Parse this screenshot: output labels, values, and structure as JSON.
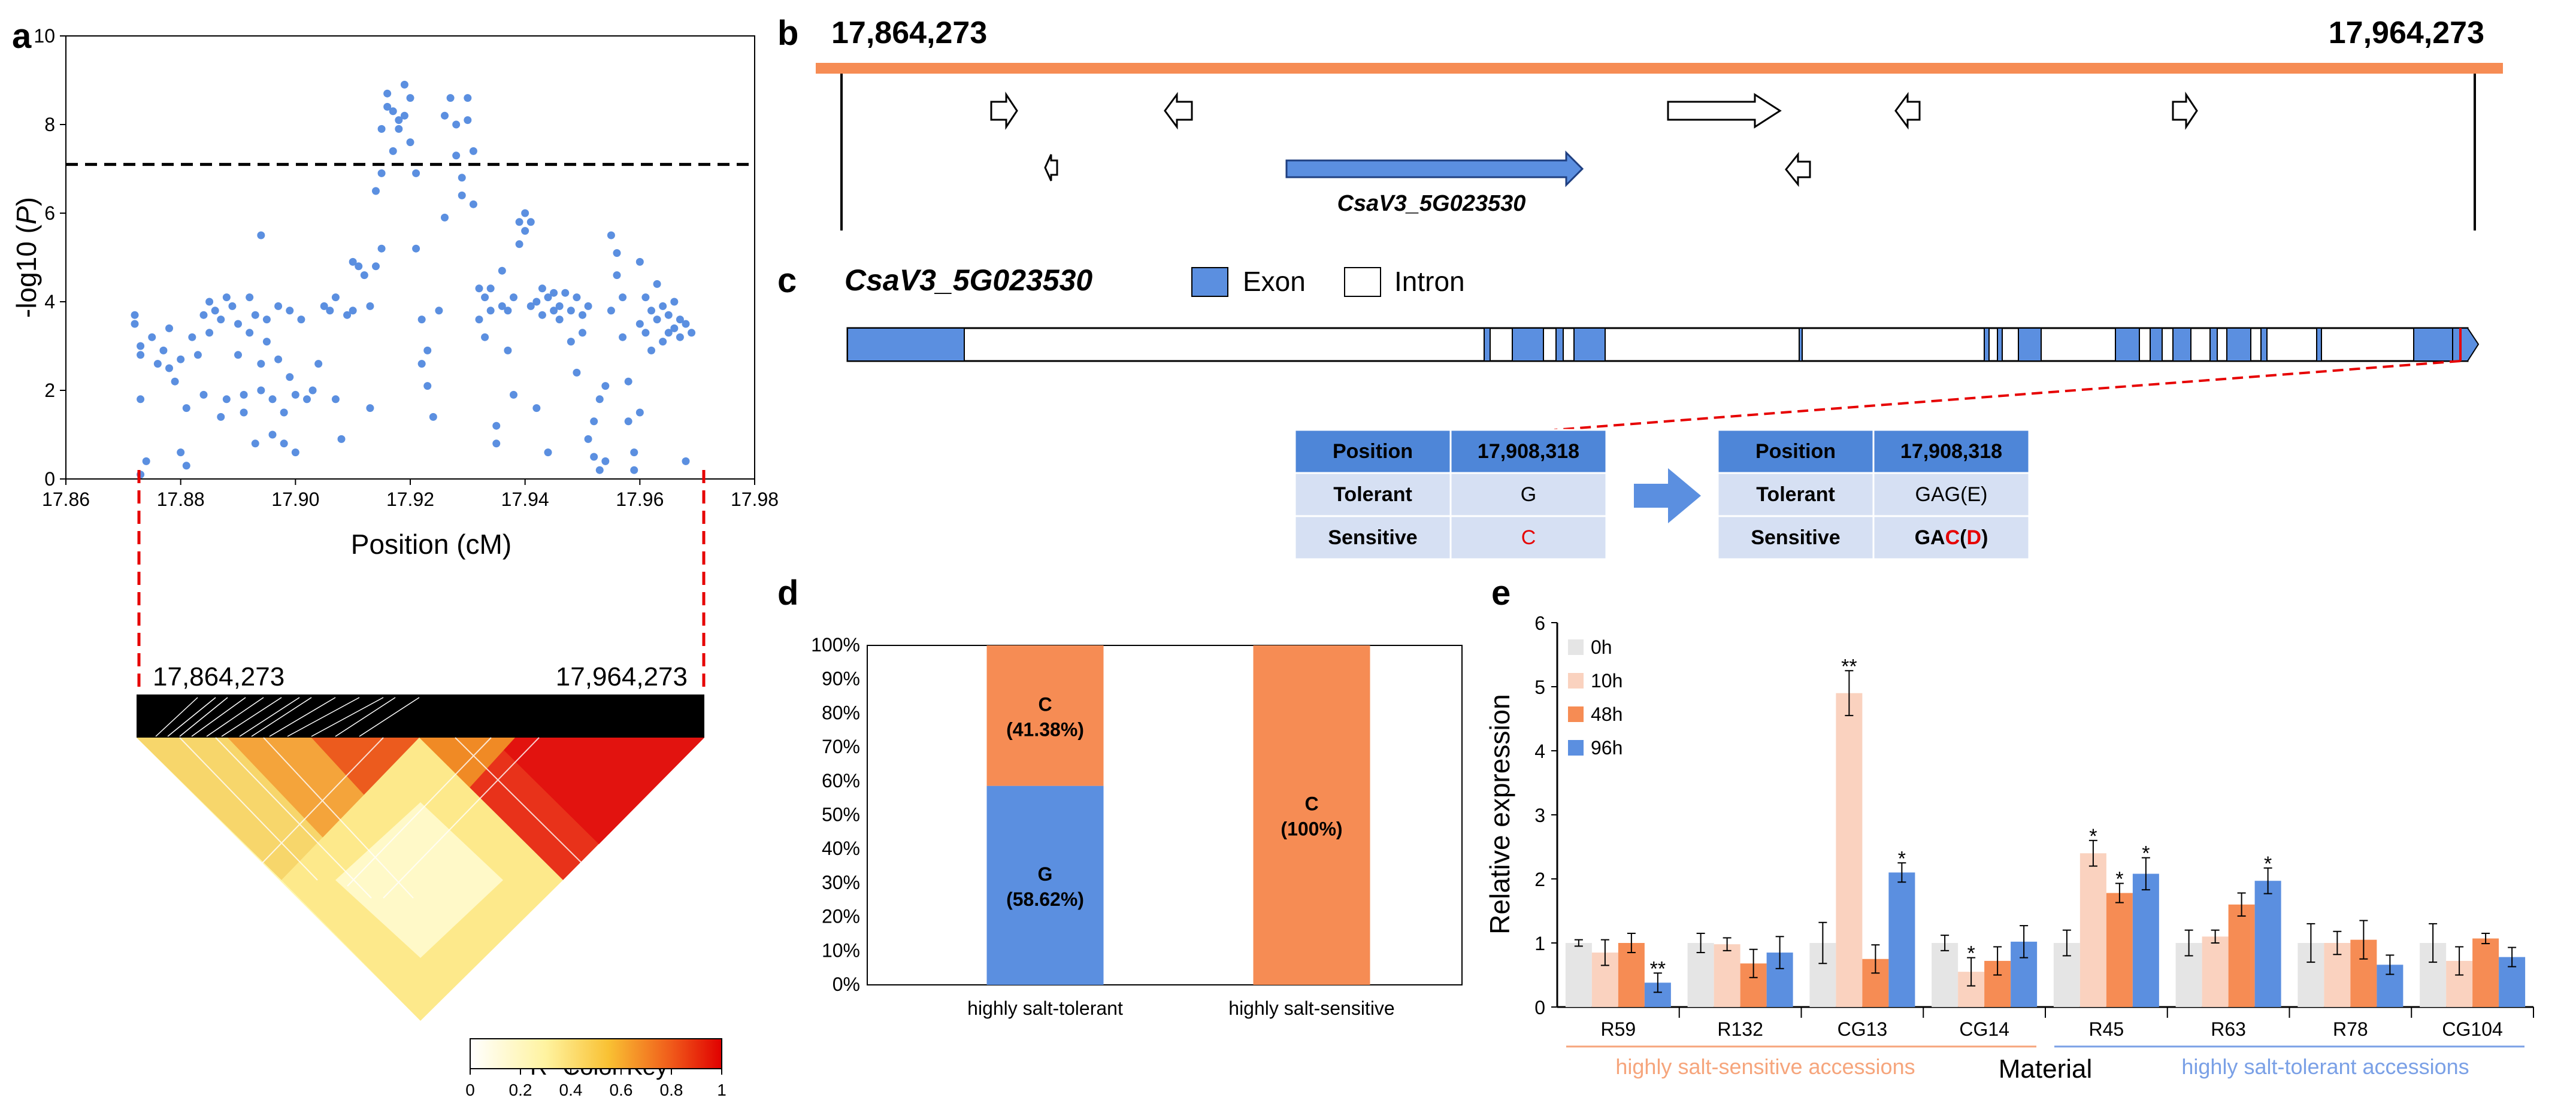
{
  "panels": {
    "a": "a",
    "b": "b",
    "c": "c",
    "d": "d",
    "e": "e"
  },
  "colors": {
    "blue": "#5b8fe0",
    "orange": "#f68c54",
    "light_orange": "#fad2bf",
    "light_gray": "#e5e5e5",
    "peach_line": "#f6a57c",
    "blue_line": "#7aa0e6",
    "red": "#e60000",
    "table_header": "#4e86d8",
    "table_row": "#d6e0f3"
  },
  "chart_data": [
    {
      "id": "a",
      "type": "scatter",
      "title": "",
      "xlabel": "Position (cM)",
      "ylabel": "-log10 (P)",
      "ylabel_main": "-log10 (",
      "ylabel_italic": "P",
      "ylabel_close": ")",
      "xlim": [
        17.86,
        17.98
      ],
      "ylim": [
        0,
        10
      ],
      "xticks": [
        "17.86",
        "17.88",
        "17.90",
        "17.92",
        "17.94",
        "17.96",
        "17.98"
      ],
      "yticks": [
        "0",
        "2",
        "4",
        "6",
        "8",
        "10"
      ],
      "threshold": 7.1,
      "series": [
        {
          "name": "SNPs",
          "points": [
            [
              17.872,
              3.7
            ],
            [
              17.872,
              3.5
            ],
            [
              17.873,
              3.0
            ],
            [
              17.873,
              2.8
            ],
            [
              17.873,
              1.8
            ],
            [
              17.874,
              0.4
            ],
            [
              17.873,
              0.1
            ],
            [
              17.875,
              3.2
            ],
            [
              17.876,
              2.6
            ],
            [
              17.877,
              2.9
            ],
            [
              17.878,
              3.4
            ],
            [
              17.878,
              2.5
            ],
            [
              17.879,
              2.2
            ],
            [
              17.88,
              2.7
            ],
            [
              17.88,
              0.6
            ],
            [
              17.881,
              0.3
            ],
            [
              17.881,
              1.6
            ],
            [
              17.882,
              3.2
            ],
            [
              17.883,
              2.8
            ],
            [
              17.884,
              1.9
            ],
            [
              17.884,
              3.7
            ],
            [
              17.885,
              3.3
            ],
            [
              17.885,
              4.0
            ],
            [
              17.886,
              3.8
            ],
            [
              17.887,
              3.6
            ],
            [
              17.887,
              1.4
            ],
            [
              17.888,
              1.8
            ],
            [
              17.888,
              4.1
            ],
            [
              17.889,
              3.9
            ],
            [
              17.89,
              3.5
            ],
            [
              17.89,
              2.8
            ],
            [
              17.891,
              1.5
            ],
            [
              17.891,
              1.9
            ],
            [
              17.892,
              4.1
            ],
            [
              17.892,
              3.3
            ],
            [
              17.893,
              3.7
            ],
            [
              17.893,
              0.8
            ],
            [
              17.894,
              2.6
            ],
            [
              17.894,
              2.0
            ],
            [
              17.894,
              5.5
            ],
            [
              17.895,
              3.6
            ],
            [
              17.895,
              3.1
            ],
            [
              17.896,
              1.8
            ],
            [
              17.896,
              1.0
            ],
            [
              17.897,
              3.9
            ],
            [
              17.897,
              2.7
            ],
            [
              17.898,
              1.5
            ],
            [
              17.898,
              0.8
            ],
            [
              17.899,
              3.8
            ],
            [
              17.899,
              2.3
            ],
            [
              17.9,
              1.9
            ],
            [
              17.9,
              0.6
            ],
            [
              17.901,
              3.6
            ],
            [
              17.902,
              1.8
            ],
            [
              17.903,
              2.0
            ],
            [
              17.904,
              2.6
            ],
            [
              17.905,
              3.9
            ],
            [
              17.906,
              3.8
            ],
            [
              17.907,
              4.1
            ],
            [
              17.907,
              1.8
            ],
            [
              17.908,
              0.9
            ],
            [
              17.909,
              3.7
            ],
            [
              17.91,
              3.8
            ],
            [
              17.91,
              4.9
            ],
            [
              17.911,
              4.8
            ],
            [
              17.912,
              4.6
            ],
            [
              17.913,
              3.9
            ],
            [
              17.913,
              1.6
            ],
            [
              17.914,
              4.8
            ],
            [
              17.914,
              6.5
            ],
            [
              17.915,
              6.9
            ],
            [
              17.915,
              5.2
            ],
            [
              17.915,
              7.9
            ],
            [
              17.916,
              8.4
            ],
            [
              17.916,
              8.7
            ],
            [
              17.917,
              8.3
            ],
            [
              17.917,
              7.4
            ],
            [
              17.918,
              8.1
            ],
            [
              17.918,
              7.9
            ],
            [
              17.919,
              8.2
            ],
            [
              17.919,
              8.9
            ],
            [
              17.92,
              8.6
            ],
            [
              17.92,
              7.6
            ],
            [
              17.921,
              6.9
            ],
            [
              17.921,
              5.2
            ],
            [
              17.922,
              3.6
            ],
            [
              17.922,
              2.6
            ],
            [
              17.923,
              2.9
            ],
            [
              17.923,
              2.1
            ],
            [
              17.924,
              1.4
            ],
            [
              17.925,
              3.8
            ],
            [
              17.926,
              5.9
            ],
            [
              17.926,
              8.2
            ],
            [
              17.927,
              8.6
            ],
            [
              17.928,
              8.0
            ],
            [
              17.928,
              7.3
            ],
            [
              17.929,
              6.4
            ],
            [
              17.929,
              6.8
            ],
            [
              17.93,
              8.1
            ],
            [
              17.93,
              8.6
            ],
            [
              17.931,
              7.4
            ],
            [
              17.931,
              6.2
            ],
            [
              17.932,
              4.3
            ],
            [
              17.932,
              3.6
            ],
            [
              17.933,
              4.1
            ],
            [
              17.933,
              3.2
            ],
            [
              17.934,
              4.3
            ],
            [
              17.934,
              3.8
            ],
            [
              17.935,
              1.2
            ],
            [
              17.935,
              0.8
            ],
            [
              17.936,
              3.9
            ],
            [
              17.936,
              4.7
            ],
            [
              17.937,
              3.8
            ],
            [
              17.937,
              2.9
            ],
            [
              17.938,
              4.1
            ],
            [
              17.938,
              1.9
            ],
            [
              17.939,
              5.3
            ],
            [
              17.939,
              5.8
            ],
            [
              17.94,
              5.6
            ],
            [
              17.94,
              6.0
            ],
            [
              17.941,
              5.8
            ],
            [
              17.941,
              3.9
            ],
            [
              17.942,
              4.0
            ],
            [
              17.942,
              1.6
            ],
            [
              17.943,
              4.3
            ],
            [
              17.943,
              3.7
            ],
            [
              17.944,
              4.1
            ],
            [
              17.944,
              0.6
            ],
            [
              17.945,
              3.8
            ],
            [
              17.945,
              4.2
            ],
            [
              17.946,
              3.9
            ],
            [
              17.946,
              3.6
            ],
            [
              17.947,
              4.2
            ],
            [
              17.948,
              3.1
            ],
            [
              17.948,
              3.8
            ],
            [
              17.949,
              2.4
            ],
            [
              17.949,
              4.1
            ],
            [
              17.95,
              3.7
            ],
            [
              17.95,
              3.3
            ],
            [
              17.951,
              3.9
            ],
            [
              17.951,
              0.9
            ],
            [
              17.952,
              1.3
            ],
            [
              17.952,
              0.5
            ],
            [
              17.953,
              0.2
            ],
            [
              17.953,
              1.8
            ],
            [
              17.954,
              0.4
            ],
            [
              17.954,
              2.1
            ],
            [
              17.955,
              3.8
            ],
            [
              17.955,
              5.5
            ],
            [
              17.956,
              5.1
            ],
            [
              17.956,
              4.6
            ],
            [
              17.957,
              4.1
            ],
            [
              17.957,
              3.2
            ],
            [
              17.958,
              2.2
            ],
            [
              17.958,
              1.3
            ],
            [
              17.959,
              0.2
            ],
            [
              17.959,
              0.6
            ],
            [
              17.96,
              1.5
            ],
            [
              17.96,
              3.5
            ],
            [
              17.96,
              4.9
            ],
            [
              17.961,
              4.1
            ],
            [
              17.961,
              3.3
            ],
            [
              17.962,
              3.8
            ],
            [
              17.962,
              2.9
            ],
            [
              17.963,
              3.6
            ],
            [
              17.963,
              4.4
            ],
            [
              17.964,
              3.9
            ],
            [
              17.964,
              3.1
            ],
            [
              17.965,
              3.7
            ],
            [
              17.965,
              3.3
            ],
            [
              17.966,
              3.4
            ],
            [
              17.966,
              4.0
            ],
            [
              17.967,
              3.6
            ],
            [
              17.967,
              3.2
            ],
            [
              17.968,
              3.5
            ],
            [
              17.968,
              0.4
            ],
            [
              17.969,
              3.3
            ]
          ]
        }
      ]
    },
    {
      "id": "d",
      "type": "bar",
      "stacked": true,
      "percent": true,
      "categories": [
        "highly salt-tolerant",
        "highly salt-sensitive"
      ],
      "yticks": [
        "0%",
        "10%",
        "20%",
        "30%",
        "40%",
        "50%",
        "60%",
        "70%",
        "80%",
        "90%",
        "100%"
      ],
      "ylim": [
        0,
        100
      ],
      "series": [
        {
          "name": "G",
          "values": [
            58.62,
            0
          ],
          "labels": [
            "(58.62%)",
            ""
          ]
        },
        {
          "name": "C",
          "values": [
            41.38,
            100
          ],
          "labels": [
            "(41.38%)",
            "(100%)"
          ]
        }
      ]
    },
    {
      "id": "e",
      "type": "bar",
      "xlabel": "Material",
      "ylabel": "Relative expression",
      "ylim": [
        0,
        6
      ],
      "yticks": [
        "0",
        "1",
        "2",
        "3",
        "4",
        "5",
        "6"
      ],
      "categories": [
        "R59",
        "R132",
        "CG13",
        "CG14",
        "R45",
        "R63",
        "R78",
        "CG104"
      ],
      "groups": [
        {
          "label": "highly salt-sensitive accessions",
          "categories": [
            "R59",
            "R132",
            "CG13",
            "CG14"
          ]
        },
        {
          "label": "highly salt-tolerant accessions",
          "categories": [
            "R45",
            "R63",
            "R78",
            "CG104"
          ]
        }
      ],
      "legend": [
        "0h",
        "10h",
        "48h",
        "96h"
      ],
      "legend_position": "top-left",
      "series": [
        {
          "name": "0h",
          "values": [
            1.0,
            1.0,
            1.0,
            1.0,
            1.0,
            1.0,
            1.0,
            1.0
          ],
          "errors": [
            0.05,
            0.15,
            0.32,
            0.12,
            0.2,
            0.2,
            0.3,
            0.3
          ],
          "sig": [
            "",
            "",
            "",
            "",
            "",
            "",
            "",
            ""
          ]
        },
        {
          "name": "10h",
          "values": [
            0.85,
            0.98,
            4.9,
            0.55,
            2.4,
            1.1,
            1.0,
            0.72
          ],
          "errors": [
            0.2,
            0.1,
            0.35,
            0.22,
            0.2,
            0.1,
            0.18,
            0.22
          ],
          "sig": [
            "",
            "",
            "**",
            "*",
            "*",
            "",
            "",
            ""
          ]
        },
        {
          "name": "48h",
          "values": [
            1.0,
            0.68,
            0.75,
            0.72,
            1.78,
            1.6,
            1.05,
            1.07
          ],
          "errors": [
            0.15,
            0.22,
            0.22,
            0.22,
            0.15,
            0.18,
            0.3,
            0.08
          ],
          "sig": [
            "",
            "",
            "",
            "",
            "*",
            "",
            "",
            ""
          ]
        },
        {
          "name": "96h",
          "values": [
            0.38,
            0.85,
            2.1,
            1.02,
            2.08,
            1.97,
            0.66,
            0.78
          ],
          "errors": [
            0.15,
            0.25,
            0.15,
            0.25,
            0.25,
            0.2,
            0.15,
            0.15
          ],
          "sig": [
            "**",
            "",
            "*",
            "",
            "*",
            "*",
            "",
            ""
          ]
        }
      ]
    }
  ],
  "panel_a_ld": {
    "start_label": "17,864,273",
    "end_label": "17,964,273",
    "color_key_title": "R",
    "color_key_sup": "2",
    "color_key_rest": " Color Key",
    "color_key_ticks": [
      "0",
      "0.2",
      "0.4",
      "0.6",
      "0.8",
      "1"
    ]
  },
  "panel_b": {
    "start": "17,864,273",
    "end": "17,964,273",
    "gene_label": "CsaV3_5G023530"
  },
  "panel_c": {
    "gene": "CsaV3_5G023530",
    "legend_exon": "Exon",
    "legend_intron": "Intron",
    "table_left": {
      "rows": [
        {
          "k": "Position",
          "v": "17,908,318"
        },
        {
          "k": "Tolerant",
          "v": "G"
        },
        {
          "k": "Sensitive",
          "v": "C"
        }
      ]
    },
    "table_right": {
      "rows": [
        {
          "k": "Position",
          "v": "17,908,318"
        },
        {
          "k": "Tolerant",
          "v": "GAG(E)"
        },
        {
          "k": "Sensitive",
          "v": "GAC(D)"
        }
      ],
      "sensitive_parts": [
        "GA",
        "C",
        "(",
        "D",
        ")"
      ]
    }
  },
  "panel_d": {
    "c_label_1": "C",
    "g_label": "G",
    "c_label_2": "C"
  }
}
